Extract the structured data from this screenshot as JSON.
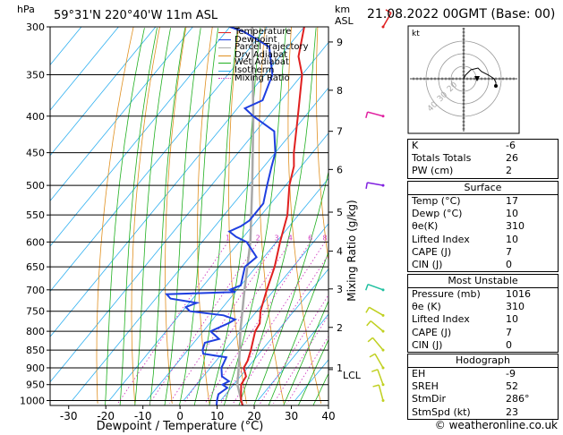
{
  "header": {
    "hpa_label": "hPa",
    "location": "59°31'N  220°40'W  11m  ASL",
    "km_label": "km",
    "asl_label": "ASL",
    "datetime": "21.08.2022  00GMT  (Base: 00)"
  },
  "colors": {
    "temperature": "#e02020",
    "dewpoint": "#1f3fe0",
    "parcel": "#a8a8a8",
    "dry_adiabat": "#e09020",
    "wet_adiabat": "#20b020",
    "isotherm": "#30b0f0",
    "mixing_ratio": "#d040c0"
  },
  "legend": [
    {
      "label": "Temperature",
      "color": "#e02020",
      "style": "solid"
    },
    {
      "label": "Dewpoint",
      "color": "#1f3fe0",
      "style": "solid"
    },
    {
      "label": "Parcel Trajectory",
      "color": "#a8a8a8",
      "style": "solid"
    },
    {
      "label": "Dry Adiabat",
      "color": "#e09020",
      "style": "solid"
    },
    {
      "label": "Wet Adiabat",
      "color": "#20b020",
      "style": "solid"
    },
    {
      "label": "Isotherm",
      "color": "#30b0f0",
      "style": "solid"
    },
    {
      "label": "Mixing Ratio",
      "color": "#d040c0",
      "style": "dotted"
    }
  ],
  "xlabel": "Dewpoint / Temperature (°C)",
  "ylabel_right": "Mixing Ratio (g/kg)",
  "lcl_label": "LCL",
  "hodograph": {
    "unit_label": "kt",
    "ring_labels": [
      "20",
      "30",
      "40"
    ],
    "points": [
      [
        0,
        0
      ],
      [
        1,
        2
      ],
      [
        4,
        5
      ],
      [
        8,
        6
      ],
      [
        10,
        4
      ],
      [
        14,
        2
      ],
      [
        17,
        0
      ],
      [
        18,
        -2
      ],
      [
        18,
        -4
      ]
    ]
  },
  "indices_table": {
    "rows": [
      {
        "k": "K",
        "v": "-6"
      },
      {
        "k": "Totals Totals",
        "v": "26"
      },
      {
        "k": "PW (cm)",
        "v": "2"
      }
    ]
  },
  "surface_table": {
    "title": "Surface",
    "rows": [
      {
        "k": "Temp (°C)",
        "v": "17"
      },
      {
        "k": "Dewp (°C)",
        "v": "10"
      },
      {
        "k": "θe(K)",
        "v": "310"
      },
      {
        "k": "Lifted Index",
        "v": "10"
      },
      {
        "k": "CAPE (J)",
        "v": "7"
      },
      {
        "k": "CIN (J)",
        "v": "0"
      }
    ]
  },
  "unstable_table": {
    "title": "Most Unstable",
    "rows": [
      {
        "k": "Pressure (mb)",
        "v": "1016"
      },
      {
        "k": "θe (K)",
        "v": "310"
      },
      {
        "k": "Lifted Index",
        "v": "10"
      },
      {
        "k": "CAPE (J)",
        "v": "7"
      },
      {
        "k": "CIN (J)",
        "v": "0"
      }
    ]
  },
  "hodo_table": {
    "title": "Hodograph",
    "rows": [
      {
        "k": "EH",
        "v": "-9"
      },
      {
        "k": "SREH",
        "v": "52"
      },
      {
        "k": "StmDir",
        "v": "286°"
      },
      {
        "k": "StmSpd (kt)",
        "v": "23"
      }
    ]
  },
  "footer": "© weatheronline.co.uk",
  "chart_data": {
    "type": "line",
    "chart_kind": "skew-T log-p",
    "x_ticks": [
      -30,
      -20,
      -10,
      0,
      10,
      20,
      30,
      40
    ],
    "xlim": [
      -35,
      40
    ],
    "pressure_levels": [
      300,
      350,
      400,
      450,
      500,
      550,
      600,
      650,
      700,
      750,
      800,
      850,
      900,
      950,
      1000
    ],
    "plim": [
      300,
      1016
    ],
    "km_ticks": [
      {
        "p": 315,
        "label": "9"
      },
      {
        "p": 368,
        "label": "8"
      },
      {
        "p": 420,
        "label": "7"
      },
      {
        "p": 475,
        "label": "6"
      },
      {
        "p": 545,
        "label": "5"
      },
      {
        "p": 618,
        "label": "4"
      },
      {
        "p": 698,
        "label": "3"
      },
      {
        "p": 790,
        "label": "2"
      },
      {
        "p": 900,
        "label": "1"
      }
    ],
    "lcl_pressure": 905,
    "mixing_ratio_labels": [
      "1",
      "2",
      "3",
      "4",
      "6",
      "8",
      "10",
      "16",
      "20",
      "25"
    ],
    "mixing_ratio_values": [
      1,
      2,
      3,
      4,
      6,
      8,
      10,
      16,
      20,
      25
    ],
    "series": [
      {
        "name": "Temperature",
        "points": [
          [
            1016,
            17
          ],
          [
            1000,
            15.5
          ],
          [
            950,
            12
          ],
          [
            925,
            11.5
          ],
          [
            900,
            9
          ],
          [
            880,
            8.5
          ],
          [
            850,
            7
          ],
          [
            800,
            4
          ],
          [
            780,
            3.5
          ],
          [
            750,
            1
          ],
          [
            700,
            -2
          ],
          [
            650,
            -5
          ],
          [
            600,
            -9
          ],
          [
            550,
            -13
          ],
          [
            500,
            -19
          ],
          [
            470,
            -22
          ],
          [
            450,
            -25
          ],
          [
            400,
            -32
          ],
          [
            350,
            -40
          ],
          [
            330,
            -45
          ],
          [
            300,
            -50
          ]
        ]
      },
      {
        "name": "Dewpoint",
        "points": [
          [
            1016,
            10
          ],
          [
            1000,
            9
          ],
          [
            980,
            8
          ],
          [
            960,
            9
          ],
          [
            950,
            7
          ],
          [
            940,
            8
          ],
          [
            925,
            5
          ],
          [
            900,
            3
          ],
          [
            870,
            2
          ],
          [
            860,
            -5
          ],
          [
            850,
            -6
          ],
          [
            830,
            -7
          ],
          [
            820,
            -4
          ],
          [
            800,
            -8
          ],
          [
            780,
            -5
          ],
          [
            770,
            -4
          ],
          [
            760,
            -8
          ],
          [
            750,
            -18
          ],
          [
            740,
            -20
          ],
          [
            730,
            -18
          ],
          [
            720,
            -26
          ],
          [
            710,
            -28
          ],
          [
            705,
            -10
          ],
          [
            700,
            -12
          ],
          [
            690,
            -10
          ],
          [
            650,
            -13
          ],
          [
            630,
            -12
          ],
          [
            600,
            -18
          ],
          [
            590,
            -22
          ],
          [
            580,
            -25
          ],
          [
            570,
            -23
          ],
          [
            560,
            -22
          ],
          [
            550,
            -22
          ],
          [
            530,
            -22
          ],
          [
            500,
            -25
          ],
          [
            470,
            -28
          ],
          [
            450,
            -30
          ],
          [
            420,
            -35
          ],
          [
            400,
            -44
          ],
          [
            390,
            -48
          ],
          [
            380,
            -45
          ],
          [
            350,
            -48
          ],
          [
            320,
            -55
          ],
          [
            305,
            -65
          ],
          [
            300,
            -70
          ]
        ]
      },
      {
        "name": "Parcel Trajectory",
        "points": [
          [
            1016,
            17
          ],
          [
            950,
            11
          ],
          [
            905,
            8
          ],
          [
            850,
            4
          ],
          [
            800,
            0
          ],
          [
            700,
            -8
          ],
          [
            600,
            -17
          ],
          [
            500,
            -29
          ],
          [
            400,
            -44
          ],
          [
            300,
            -64
          ]
        ]
      }
    ]
  }
}
